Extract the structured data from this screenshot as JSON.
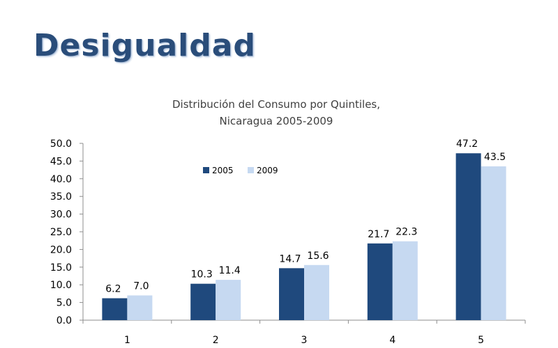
{
  "slide": {
    "title": "Desigualdad"
  },
  "chart_data": {
    "type": "bar",
    "title": [
      "Distribución del Consumo por Quintiles,",
      "Nicaragua 2005-2009"
    ],
    "categories": [
      "1",
      "2",
      "3",
      "4",
      "5"
    ],
    "series": [
      {
        "name": "2005",
        "values": [
          6.2,
          10.3,
          14.7,
          21.7,
          47.2
        ],
        "color": "#1f497d"
      },
      {
        "name": "2009",
        "values": [
          7.0,
          11.4,
          15.6,
          22.3,
          43.5
        ],
        "color": "#c6d9f1"
      }
    ],
    "ylim": [
      0,
      50
    ],
    "yticks": [
      "0.0",
      "5.0",
      "10.0",
      "15.0",
      "20.0",
      "25.0",
      "30.0",
      "35.0",
      "40.0",
      "45.0",
      "50.0"
    ],
    "value_labels": [
      [
        "6.2",
        "10.3",
        "14.7",
        "21.7",
        "47.2"
      ],
      [
        "7.0",
        "11.4",
        "15.6",
        "22.3",
        "43.5"
      ]
    ],
    "grid": false,
    "legend": "top-left",
    "xlabel": "",
    "ylabel": ""
  }
}
